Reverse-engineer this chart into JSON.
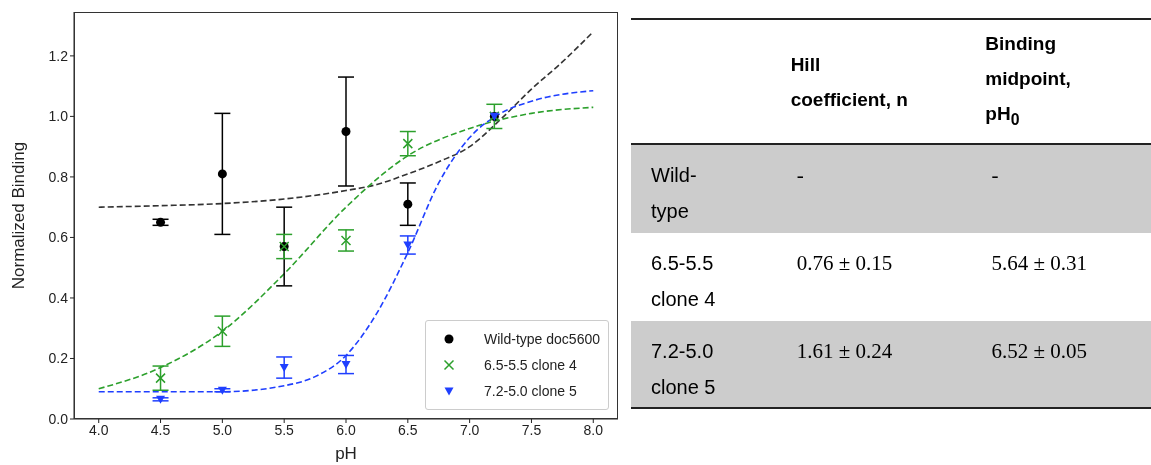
{
  "chart_data": [
    {
      "type": "scatter",
      "xlabel": "pH",
      "ylabel": "Normalized Binding",
      "xlim": [
        3.8,
        8.2
      ],
      "ylim": [
        0,
        1.345
      ],
      "xticks": [
        {
          "value": 4,
          "label": "4.0"
        },
        {
          "value": 4.5,
          "label": "4.5"
        },
        {
          "value": 5,
          "label": "5.0"
        },
        {
          "value": 5.5,
          "label": "5.5"
        },
        {
          "value": 6,
          "label": "6.0"
        },
        {
          "value": 6.5,
          "label": "6.5"
        },
        {
          "value": 7,
          "label": "7.0"
        },
        {
          "value": 7.5,
          "label": "7.5"
        },
        {
          "value": 8,
          "label": "8.0"
        }
      ],
      "yticks": [
        {
          "value": 0,
          "label": "0.0"
        },
        {
          "value": 0.2,
          "label": "0.2"
        },
        {
          "value": 0.4,
          "label": "0.4"
        },
        {
          "value": 0.6,
          "label": "0.6"
        },
        {
          "value": 0.8,
          "label": "0.8"
        },
        {
          "value": 1,
          "label": "1.0"
        },
        {
          "value": 1.2,
          "label": "1.2"
        }
      ],
      "legend": "bottom right",
      "series": [
        {
          "type": "line",
          "line_style": "dashed",
          "color": "#333333",
          "x": [
            4.0,
            4.5,
            5.0,
            5.5,
            6.0,
            6.25,
            6.5,
            6.75,
            7.0,
            7.25,
            7.5,
            7.75,
            8.0
          ],
          "values": [
            0.7,
            0.705,
            0.712,
            0.727,
            0.755,
            0.775,
            0.81,
            0.85,
            0.9,
            0.99,
            1.09,
            1.18,
            1.28
          ]
        },
        {
          "type": "line",
          "line_style": "dashed",
          "color": "#2ca02c",
          "x": [
            4.0,
            4.5,
            5.0,
            5.5,
            6.0,
            6.5,
            7.0,
            7.5,
            8.0
          ],
          "values": [
            0.1,
            0.17,
            0.29,
            0.48,
            0.7,
            0.87,
            0.96,
            1.01,
            1.03
          ]
        },
        {
          "type": "line",
          "line_style": "dashed",
          "color": "#1f3fff",
          "x": [
            4.0,
            5.0,
            5.5,
            5.75,
            6.0,
            6.25,
            6.5,
            6.75,
            7.0,
            7.25,
            7.5,
            8.0
          ],
          "values": [
            0.09,
            0.09,
            0.11,
            0.14,
            0.21,
            0.35,
            0.55,
            0.78,
            0.93,
            1.01,
            1.05,
            1.085
          ]
        },
        {
          "name": "Wild-type doc5600",
          "marker": "circle",
          "color": "#000000",
          "x": [
            4.5,
            5.0,
            5.5,
            6.0,
            6.5,
            7.2
          ],
          "values": [
            0.65,
            0.81,
            0.57,
            0.95,
            0.71,
            1.0
          ],
          "errors": [
            0.01,
            0.2,
            0.13,
            0.18,
            0.07,
            null
          ]
        },
        {
          "name": "6.5-5.5 clone 4",
          "marker": "cross",
          "color": "#2ca02c",
          "x": [
            4.5,
            5.0,
            5.5,
            6.0,
            6.5,
            7.2
          ],
          "values": [
            0.135,
            0.29,
            0.57,
            0.59,
            0.91,
            1.0
          ],
          "errors": [
            0.04,
            0.05,
            0.04,
            0.035,
            0.04,
            0.04
          ]
        },
        {
          "name": "7.2-5.0 clone 5",
          "marker": "triangle",
          "color": "#1f3fff",
          "x": [
            4.5,
            5.0,
            5.5,
            6.0,
            6.5,
            7.2
          ],
          "values": [
            0.065,
            0.095,
            0.17,
            0.18,
            0.575,
            1.0
          ],
          "errors": [
            0.005,
            0.005,
            0.035,
            0.03,
            0.03,
            null
          ]
        }
      ]
    },
    {
      "type": "other",
      "categories": [
        null,
        "Hill coefficient, n",
        "Binding midpoint, pH$_{0}$"
      ],
      "y_categories": [
        "Wild-type",
        "6.5-5.5 clone 4",
        "7.2-5.0 clone 5"
      ],
      "cell_labels": [
        [
          "-",
          "-"
        ],
        [
          "0.76 ± 0.15",
          "5.64 ± 0.31"
        ],
        [
          "1.61 ± 0.24",
          "6.52 ± 0.05"
        ]
      ]
    }
  ]
}
